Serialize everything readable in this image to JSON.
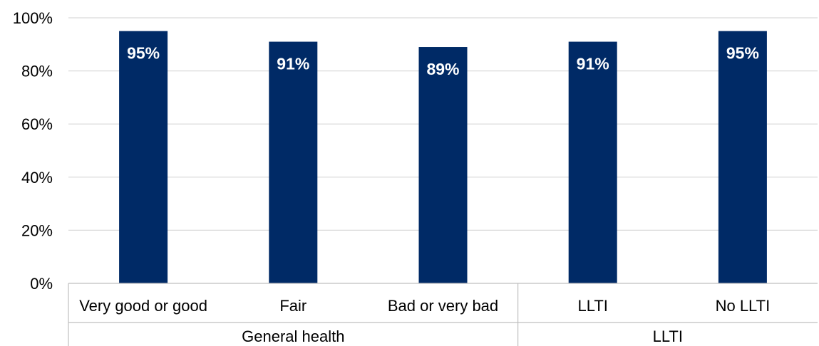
{
  "chart_data": {
    "type": "bar",
    "title": "",
    "xlabel": "",
    "ylabel": "",
    "ylim": [
      0,
      100
    ],
    "yticks": [
      "0%",
      "20%",
      "40%",
      "60%",
      "80%",
      "100%"
    ],
    "ytick_values": [
      0,
      20,
      40,
      60,
      80,
      100
    ],
    "grid": true,
    "legend": "none",
    "categories": [
      "Very good or good",
      "Fair",
      "Bad or very bad",
      "LLTI",
      "No LLTI"
    ],
    "values": [
      95,
      91,
      89,
      91,
      95
    ],
    "value_labels": [
      "95%",
      "91%",
      "89%",
      "91%",
      "95%"
    ],
    "groups": [
      {
        "label": "General health",
        "categories": [
          "Very good or good",
          "Fair",
          "Bad or very bad"
        ]
      },
      {
        "label": "LLTI",
        "categories": [
          "LLTI",
          "No LLTI"
        ]
      }
    ],
    "bar_color": "#002a66",
    "label_color": "#ffffff"
  }
}
